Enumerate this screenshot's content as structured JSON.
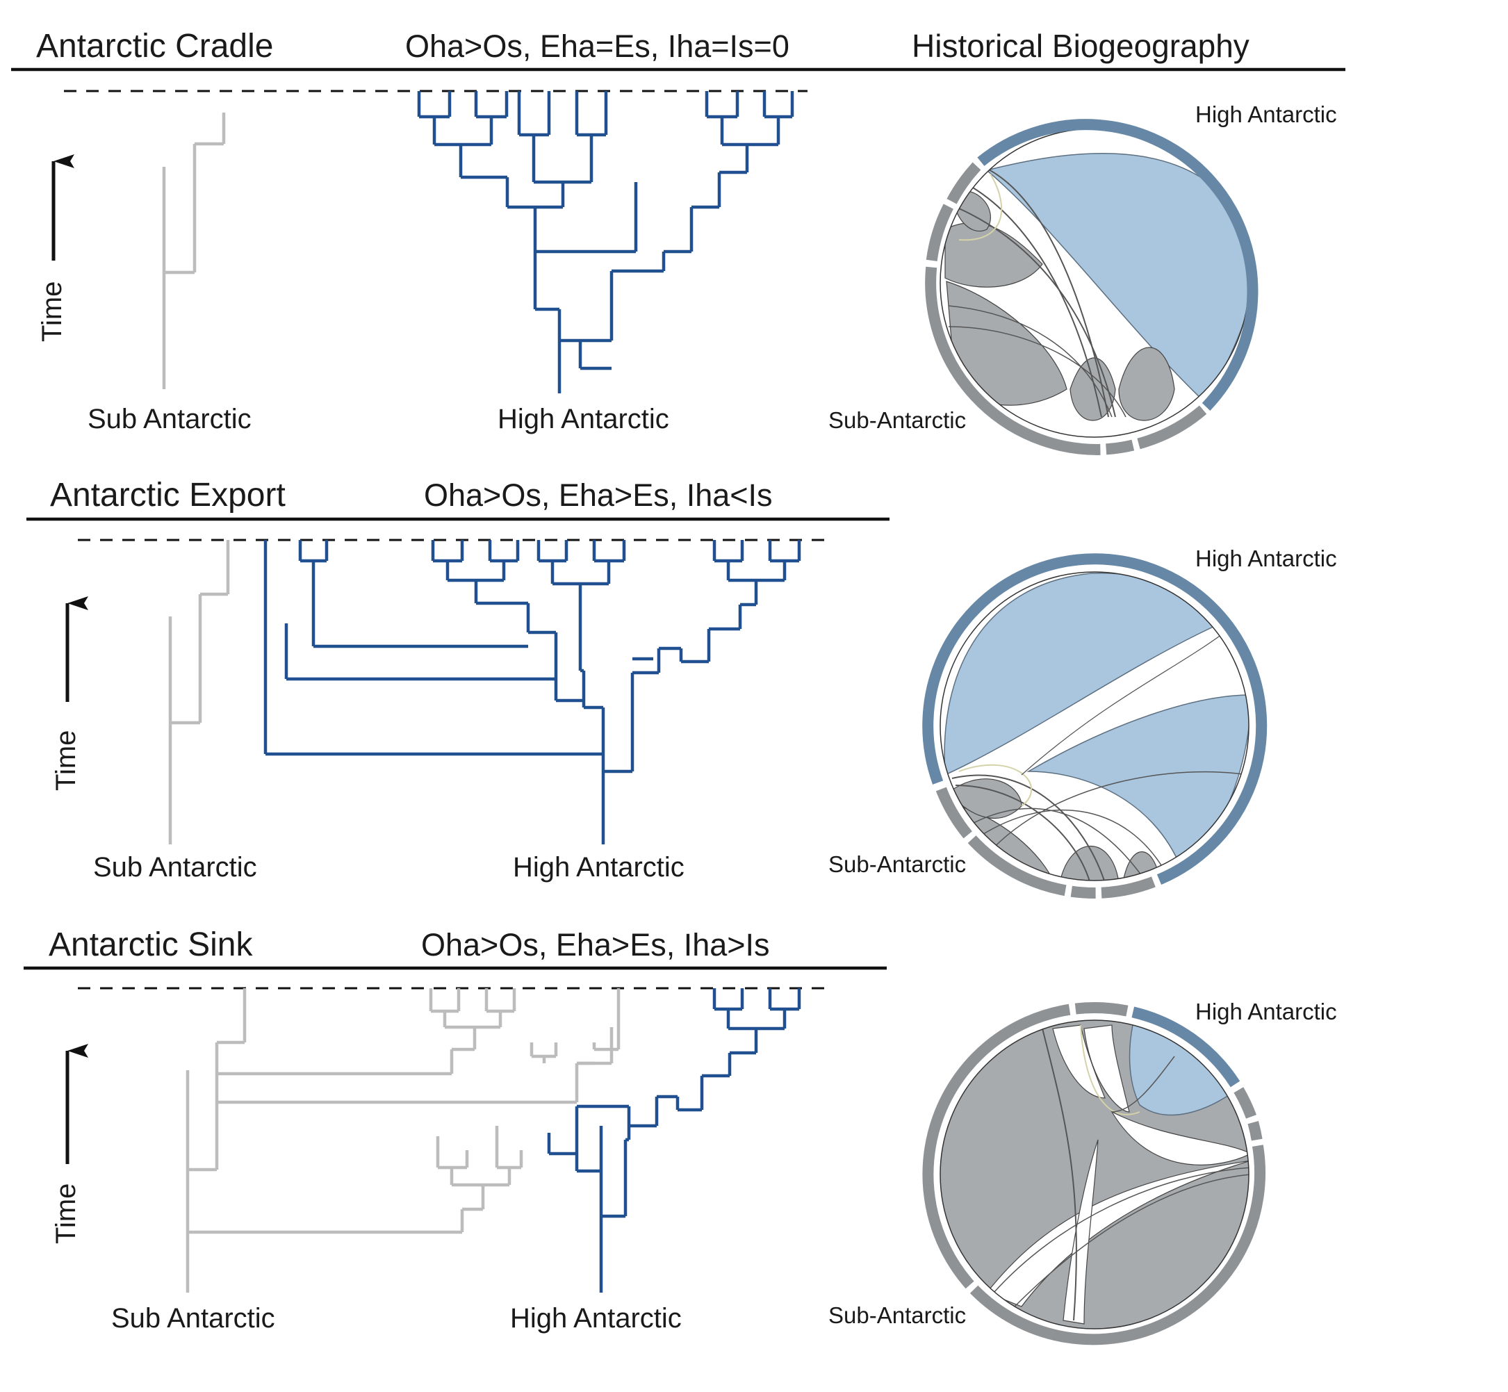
{
  "column_header": "Historical Biogeography",
  "time_label": "Time",
  "region_labels": {
    "sub": "Sub Antarctic",
    "high": "High Antarctic",
    "chord_sub": "Sub-Antarctic",
    "chord_high": "High Antarctic"
  },
  "panels": [
    {
      "title": "Antarctic Cradle",
      "equation": "Oha>Os, Eha=Es, Iha=Is=0"
    },
    {
      "title": "Antarctic Export",
      "equation": "Oha>Os, Eha>Es, Iha<Is"
    },
    {
      "title": "Antarctic Sink",
      "equation": "Oha>Os, Eha>Es, Iha>Is"
    }
  ],
  "colors": {
    "high_antarctic_branch": "#20508f",
    "sub_antarctic_branch": "#bcbcbc",
    "chord_high_fill": "#aac6de",
    "chord_high_ring": "#6688a6",
    "chord_sub_fill": "#a8abae",
    "chord_sub_ring": "#8f9295"
  }
}
